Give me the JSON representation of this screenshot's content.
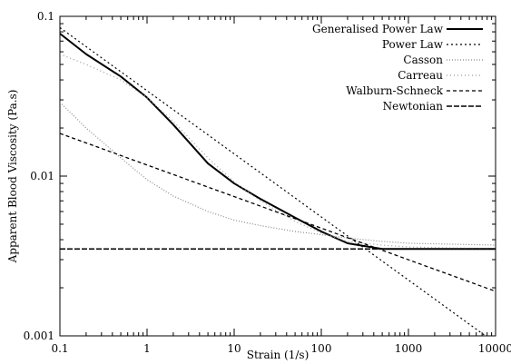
{
  "chart_data": {
    "type": "line",
    "xlabel": "Strain (1/s)",
    "ylabel": "Apparent Blood Viscosity (Pa.s)",
    "xscale": "log",
    "yscale": "log",
    "xlim": [
      0.1,
      10000
    ],
    "ylim": [
      0.001,
      0.1
    ],
    "grid": false,
    "legend_position": "top-right",
    "x_ticks": [
      {
        "value": 0.1,
        "label": "0.1"
      },
      {
        "value": 1,
        "label": "1"
      },
      {
        "value": 10,
        "label": "10"
      },
      {
        "value": 100,
        "label": "100"
      },
      {
        "value": 1000,
        "label": "1000"
      },
      {
        "value": 10000,
        "label": "10000"
      }
    ],
    "y_ticks": [
      {
        "value": 0.001,
        "label": "0.001"
      },
      {
        "value": 0.01,
        "label": "0.01"
      },
      {
        "value": 0.1,
        "label": "0.1"
      }
    ],
    "series": [
      {
        "name": "Generalised Power Law",
        "color": "#000000",
        "dash": "",
        "width": 2,
        "x": [
          0.1,
          0.2,
          0.5,
          1,
          2,
          5,
          10,
          20,
          50,
          100,
          200,
          500,
          1000,
          10000
        ],
        "y": [
          0.078,
          0.058,
          0.042,
          0.031,
          0.021,
          0.012,
          0.009,
          0.0072,
          0.0055,
          0.0045,
          0.0038,
          0.0035,
          0.0035,
          0.0035
        ]
      },
      {
        "name": "Power Law",
        "color": "#000000",
        "dash": "2,3",
        "width": 1.2,
        "x": [
          0.1,
          10000
        ],
        "y": [
          0.085,
          0.0009
        ]
      },
      {
        "name": "Casson",
        "color": "#888888",
        "dash": "1,2",
        "width": 1.2,
        "x": [
          0.1,
          0.2,
          0.5,
          1,
          2,
          5,
          10,
          20,
          50,
          100,
          200,
          500,
          1000,
          10000
        ],
        "y": [
          0.029,
          0.02,
          0.013,
          0.0095,
          0.0075,
          0.006,
          0.0053,
          0.0049,
          0.0045,
          0.0043,
          0.0041,
          0.0039,
          0.0038,
          0.0037
        ]
      },
      {
        "name": "Carreau",
        "color": "#999999",
        "dash": "1,3",
        "width": 1.2,
        "x": [
          0.1,
          0.2,
          0.5,
          1,
          2,
          5,
          10,
          20,
          50,
          100,
          200,
          500,
          1000,
          10000
        ],
        "y": [
          0.058,
          0.05,
          0.04,
          0.031,
          0.022,
          0.013,
          0.0092,
          0.007,
          0.0052,
          0.0044,
          0.0039,
          0.0037,
          0.0036,
          0.0035
        ]
      },
      {
        "name": "Walburn-Schneck",
        "color": "#000000",
        "dash": "4,3",
        "width": 1.3,
        "x": [
          0.1,
          10000
        ],
        "y": [
          0.0185,
          0.0019
        ]
      },
      {
        "name": "Newtonian",
        "color": "#000000",
        "dash": "6,2",
        "width": 1.6,
        "x": [
          0.1,
          10000
        ],
        "y": [
          0.0035,
          0.0035
        ]
      }
    ]
  }
}
